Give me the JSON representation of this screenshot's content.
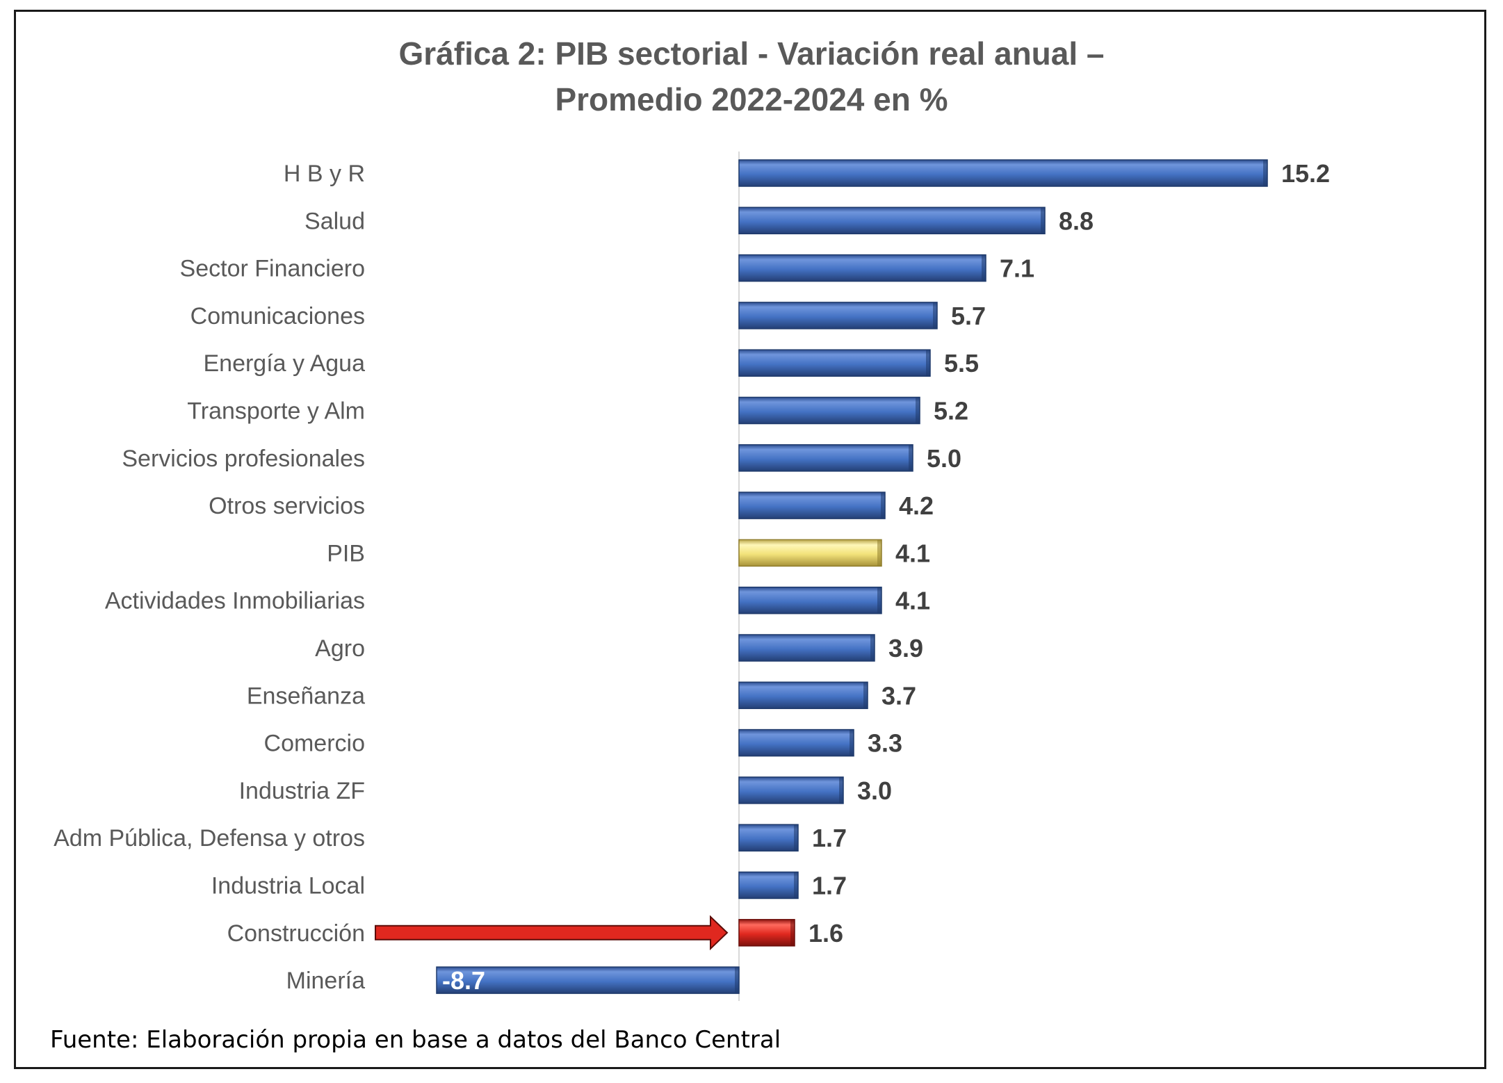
{
  "chart_data": {
    "type": "bar",
    "orientation": "horizontal",
    "title_lines": [
      "Gráfica 2: PIB sectorial - Variación real anual –",
      "Promedio 2022-2024 en %"
    ],
    "categories": [
      "H B y R",
      "Salud",
      "Sector Financiero",
      "Comunicaciones",
      "Energía y Agua",
      "Transporte y Alm",
      "Servicios profesionales",
      "Otros servicios",
      "PIB",
      "Actividades Inmobiliarias",
      "Agro",
      "Enseñanza",
      "Comercio",
      "Industria ZF",
      "Adm Pública, Defensa y otros",
      "Industria Local",
      "Construcción",
      "Minería"
    ],
    "values": [
      15.2,
      8.8,
      7.1,
      5.7,
      5.5,
      5.2,
      5.0,
      4.2,
      4.1,
      4.1,
      3.9,
      3.7,
      3.3,
      3.0,
      1.7,
      1.7,
      1.6,
      -8.7
    ],
    "value_labels": [
      "15.2",
      "8.8",
      "7.1",
      "5.7",
      "5.5",
      "5.2",
      "5.0",
      "4.2",
      "4.1",
      "4.1",
      "3.9",
      "3.7",
      "3.3",
      "3.0",
      "1.7",
      "1.7",
      "1.6",
      "-8.7"
    ],
    "xlim": [
      -8.7,
      15.2
    ],
    "grid": false,
    "legend": "none",
    "colors": {
      "default": "#4472C4",
      "highlight_pib": "#F2E27A",
      "highlight_construccion": "#E0281F",
      "arrow": "#E0281F"
    },
    "annotations": [
      "arrow pointing to Construcción"
    ],
    "source_note": "Fuente:  Elaboración propia en base a datos del Banco Central"
  }
}
